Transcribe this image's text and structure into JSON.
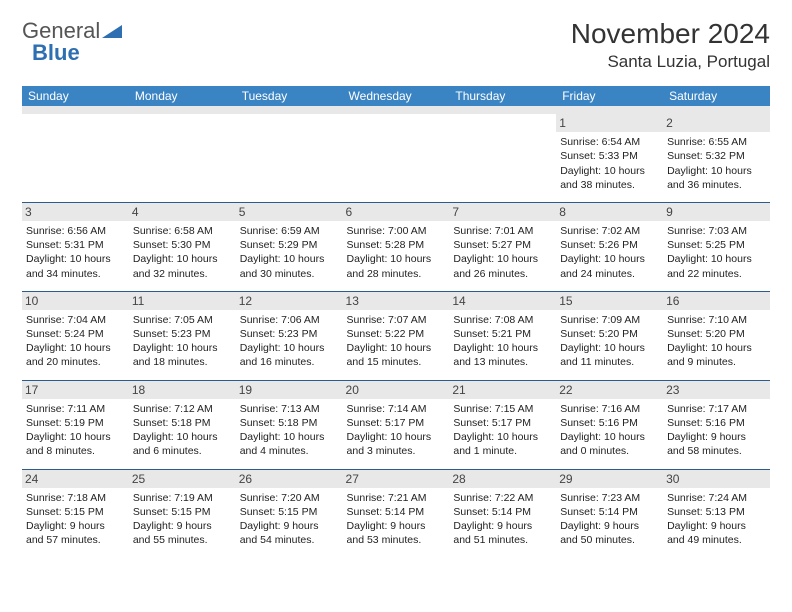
{
  "logo": {
    "word1": "General",
    "word2": "Blue"
  },
  "title": "November 2024",
  "location": "Santa Luzia, Portugal",
  "colors": {
    "header_bg": "#3b84c4",
    "header_text": "#ffffff",
    "daynum_bg": "#e8e8e8",
    "week_border": "#2a5d8c",
    "body_text": "#222222",
    "page_bg": "#ffffff",
    "logo_gray": "#555555",
    "logo_blue": "#2d6fb0"
  },
  "typography": {
    "title_fontsize": 28,
    "location_fontsize": 17,
    "dow_fontsize": 12,
    "daynum_fontsize": 12,
    "body_fontsize": 10.5
  },
  "days_of_week": [
    "Sunday",
    "Monday",
    "Tuesday",
    "Wednesday",
    "Thursday",
    "Friday",
    "Saturday"
  ],
  "weeks": [
    [
      {
        "n": "",
        "sr": "",
        "ss": "",
        "dl": ""
      },
      {
        "n": "",
        "sr": "",
        "ss": "",
        "dl": ""
      },
      {
        "n": "",
        "sr": "",
        "ss": "",
        "dl": ""
      },
      {
        "n": "",
        "sr": "",
        "ss": "",
        "dl": ""
      },
      {
        "n": "",
        "sr": "",
        "ss": "",
        "dl": ""
      },
      {
        "n": "1",
        "sr": "Sunrise: 6:54 AM",
        "ss": "Sunset: 5:33 PM",
        "dl": "Daylight: 10 hours and 38 minutes."
      },
      {
        "n": "2",
        "sr": "Sunrise: 6:55 AM",
        "ss": "Sunset: 5:32 PM",
        "dl": "Daylight: 10 hours and 36 minutes."
      }
    ],
    [
      {
        "n": "3",
        "sr": "Sunrise: 6:56 AM",
        "ss": "Sunset: 5:31 PM",
        "dl": "Daylight: 10 hours and 34 minutes."
      },
      {
        "n": "4",
        "sr": "Sunrise: 6:58 AM",
        "ss": "Sunset: 5:30 PM",
        "dl": "Daylight: 10 hours and 32 minutes."
      },
      {
        "n": "5",
        "sr": "Sunrise: 6:59 AM",
        "ss": "Sunset: 5:29 PM",
        "dl": "Daylight: 10 hours and 30 minutes."
      },
      {
        "n": "6",
        "sr": "Sunrise: 7:00 AM",
        "ss": "Sunset: 5:28 PM",
        "dl": "Daylight: 10 hours and 28 minutes."
      },
      {
        "n": "7",
        "sr": "Sunrise: 7:01 AM",
        "ss": "Sunset: 5:27 PM",
        "dl": "Daylight: 10 hours and 26 minutes."
      },
      {
        "n": "8",
        "sr": "Sunrise: 7:02 AM",
        "ss": "Sunset: 5:26 PM",
        "dl": "Daylight: 10 hours and 24 minutes."
      },
      {
        "n": "9",
        "sr": "Sunrise: 7:03 AM",
        "ss": "Sunset: 5:25 PM",
        "dl": "Daylight: 10 hours and 22 minutes."
      }
    ],
    [
      {
        "n": "10",
        "sr": "Sunrise: 7:04 AM",
        "ss": "Sunset: 5:24 PM",
        "dl": "Daylight: 10 hours and 20 minutes."
      },
      {
        "n": "11",
        "sr": "Sunrise: 7:05 AM",
        "ss": "Sunset: 5:23 PM",
        "dl": "Daylight: 10 hours and 18 minutes."
      },
      {
        "n": "12",
        "sr": "Sunrise: 7:06 AM",
        "ss": "Sunset: 5:23 PM",
        "dl": "Daylight: 10 hours and 16 minutes."
      },
      {
        "n": "13",
        "sr": "Sunrise: 7:07 AM",
        "ss": "Sunset: 5:22 PM",
        "dl": "Daylight: 10 hours and 15 minutes."
      },
      {
        "n": "14",
        "sr": "Sunrise: 7:08 AM",
        "ss": "Sunset: 5:21 PM",
        "dl": "Daylight: 10 hours and 13 minutes."
      },
      {
        "n": "15",
        "sr": "Sunrise: 7:09 AM",
        "ss": "Sunset: 5:20 PM",
        "dl": "Daylight: 10 hours and 11 minutes."
      },
      {
        "n": "16",
        "sr": "Sunrise: 7:10 AM",
        "ss": "Sunset: 5:20 PM",
        "dl": "Daylight: 10 hours and 9 minutes."
      }
    ],
    [
      {
        "n": "17",
        "sr": "Sunrise: 7:11 AM",
        "ss": "Sunset: 5:19 PM",
        "dl": "Daylight: 10 hours and 8 minutes."
      },
      {
        "n": "18",
        "sr": "Sunrise: 7:12 AM",
        "ss": "Sunset: 5:18 PM",
        "dl": "Daylight: 10 hours and 6 minutes."
      },
      {
        "n": "19",
        "sr": "Sunrise: 7:13 AM",
        "ss": "Sunset: 5:18 PM",
        "dl": "Daylight: 10 hours and 4 minutes."
      },
      {
        "n": "20",
        "sr": "Sunrise: 7:14 AM",
        "ss": "Sunset: 5:17 PM",
        "dl": "Daylight: 10 hours and 3 minutes."
      },
      {
        "n": "21",
        "sr": "Sunrise: 7:15 AM",
        "ss": "Sunset: 5:17 PM",
        "dl": "Daylight: 10 hours and 1 minute."
      },
      {
        "n": "22",
        "sr": "Sunrise: 7:16 AM",
        "ss": "Sunset: 5:16 PM",
        "dl": "Daylight: 10 hours and 0 minutes."
      },
      {
        "n": "23",
        "sr": "Sunrise: 7:17 AM",
        "ss": "Sunset: 5:16 PM",
        "dl": "Daylight: 9 hours and 58 minutes."
      }
    ],
    [
      {
        "n": "24",
        "sr": "Sunrise: 7:18 AM",
        "ss": "Sunset: 5:15 PM",
        "dl": "Daylight: 9 hours and 57 minutes."
      },
      {
        "n": "25",
        "sr": "Sunrise: 7:19 AM",
        "ss": "Sunset: 5:15 PM",
        "dl": "Daylight: 9 hours and 55 minutes."
      },
      {
        "n": "26",
        "sr": "Sunrise: 7:20 AM",
        "ss": "Sunset: 5:15 PM",
        "dl": "Daylight: 9 hours and 54 minutes."
      },
      {
        "n": "27",
        "sr": "Sunrise: 7:21 AM",
        "ss": "Sunset: 5:14 PM",
        "dl": "Daylight: 9 hours and 53 minutes."
      },
      {
        "n": "28",
        "sr": "Sunrise: 7:22 AM",
        "ss": "Sunset: 5:14 PM",
        "dl": "Daylight: 9 hours and 51 minutes."
      },
      {
        "n": "29",
        "sr": "Sunrise: 7:23 AM",
        "ss": "Sunset: 5:14 PM",
        "dl": "Daylight: 9 hours and 50 minutes."
      },
      {
        "n": "30",
        "sr": "Sunrise: 7:24 AM",
        "ss": "Sunset: 5:13 PM",
        "dl": "Daylight: 9 hours and 49 minutes."
      }
    ]
  ]
}
